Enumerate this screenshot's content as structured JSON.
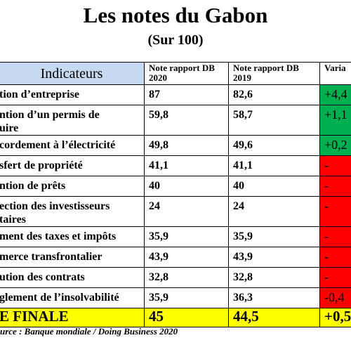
{
  "header": {
    "title": "Les notes du Gabon",
    "subtitle": "(Sur 100)"
  },
  "table": {
    "columns": [
      "Indicateurs",
      "Note rapport DB 2020",
      "Note rapport DB 2019",
      "Varia"
    ],
    "rows": [
      [
        "tion d’entreprise",
        "87",
        "82,6",
        "+4,4"
      ],
      [
        "ntion d’un permis de\nuire",
        "59,8",
        "58,7",
        "+1,1"
      ],
      [
        "cordement à l’électricité",
        "49,8",
        "49,6",
        "+0,2"
      ],
      [
        "sfert de propriété",
        "41,1",
        "41,1",
        "-"
      ],
      [
        "ntion de prêts",
        "40",
        "40",
        "-"
      ],
      [
        "ection des investisseurs\ntaires",
        "24",
        "24",
        "-"
      ],
      [
        "ment des taxes et impôts",
        "35,9",
        "35,9",
        "-"
      ],
      [
        "merce transfrontalier",
        "43,9",
        "43,9",
        "-"
      ],
      [
        "ution des contrats",
        "32,8",
        "32,8",
        "-"
      ],
      [
        "glement de l’insolvabilité",
        "35,9",
        "36,3",
        "-0,4"
      ],
      [
        "E FINALE",
        "45",
        "44,5",
        "+0,5"
      ]
    ]
  },
  "footer": {
    "source": "urce : Banque mondiale / Doing Business 2020"
  }
}
